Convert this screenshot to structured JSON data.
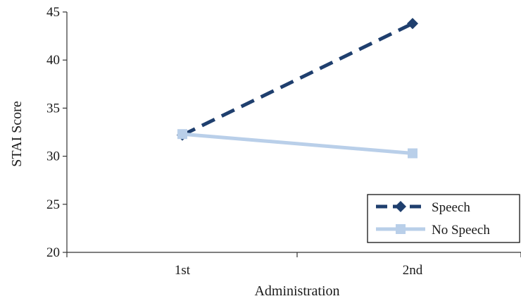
{
  "chart_data": {
    "type": "line",
    "title": "",
    "xlabel": "Administration",
    "ylabel": "STAI Score",
    "categories": [
      "1st",
      "2nd"
    ],
    "ylim": [
      20,
      45
    ],
    "yticks": [
      "20",
      "25",
      "30",
      "35",
      "40",
      "45"
    ],
    "grid": false,
    "legend": "bottom-right",
    "series": [
      {
        "name": "Speech",
        "values": [
          32.2,
          43.8
        ],
        "color": "#1f3f6e",
        "style": "dashed",
        "marker": "diamond"
      },
      {
        "name": "No Speech",
        "values": [
          32.3,
          30.3
        ],
        "color": "#b9cfe9",
        "style": "solid",
        "marker": "square"
      }
    ]
  }
}
